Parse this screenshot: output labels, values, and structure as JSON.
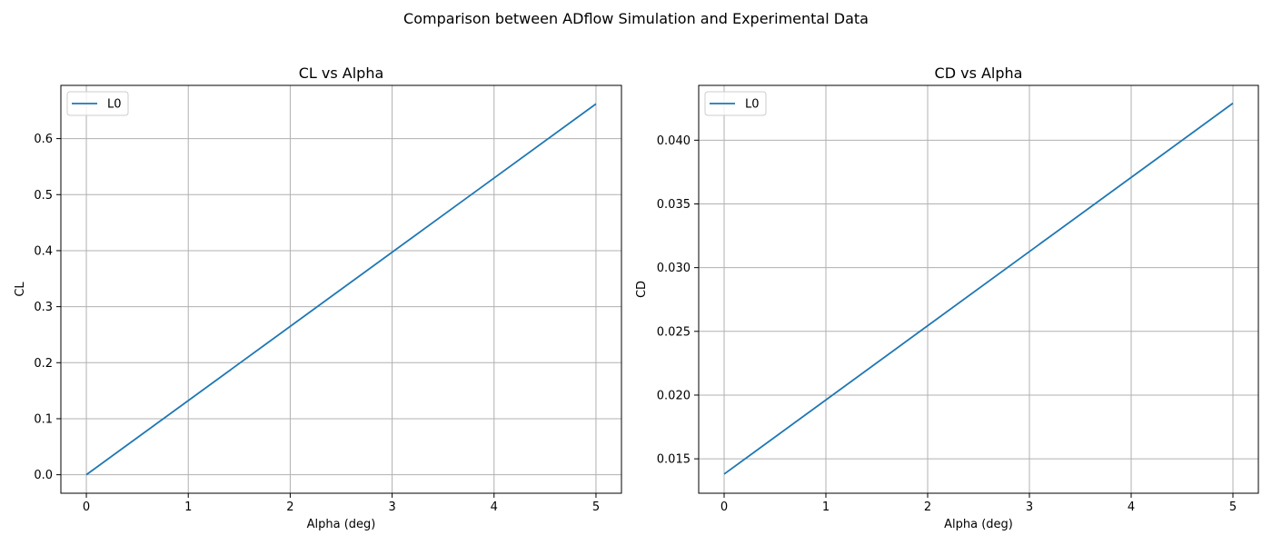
{
  "figure": {
    "suptitle": "Comparison between ADflow Simulation and Experimental Data"
  },
  "colors": {
    "series": "#1f77b4",
    "grid": "#b0b0b0",
    "spine": "#000000",
    "background": "#ffffff"
  },
  "chart_data": [
    {
      "type": "line",
      "title": "CL vs Alpha",
      "xlabel": "Alpha (deg)",
      "ylabel": "CL",
      "xlim": [
        -0.25,
        5.25
      ],
      "ylim": [
        -0.033,
        0.695
      ],
      "xticks": [
        0,
        1,
        2,
        3,
        4,
        5
      ],
      "xtick_labels": [
        "0",
        "1",
        "2",
        "3",
        "4",
        "5"
      ],
      "yticks": [
        0.0,
        0.1,
        0.2,
        0.3,
        0.4,
        0.5,
        0.6
      ],
      "ytick_labels": [
        "0.0",
        "0.1",
        "0.2",
        "0.3",
        "0.4",
        "0.5",
        "0.6"
      ],
      "grid": true,
      "legend_loc": "upper left",
      "series": [
        {
          "name": "L0",
          "x": [
            0,
            5
          ],
          "y": [
            0.0,
            0.662
          ]
        }
      ]
    },
    {
      "type": "line",
      "title": "CD vs Alpha",
      "xlabel": "Alpha (deg)",
      "ylabel": "CD",
      "xlim": [
        -0.25,
        5.25
      ],
      "ylim": [
        0.0123,
        0.0443
      ],
      "xticks": [
        0,
        1,
        2,
        3,
        4,
        5
      ],
      "xtick_labels": [
        "0",
        "1",
        "2",
        "3",
        "4",
        "5"
      ],
      "yticks": [
        0.015,
        0.02,
        0.025,
        0.03,
        0.035,
        0.04
      ],
      "ytick_labels": [
        "0.015",
        "0.020",
        "0.025",
        "0.030",
        "0.035",
        "0.040"
      ],
      "grid": true,
      "legend_loc": "upper left",
      "series": [
        {
          "name": "L0",
          "x": [
            0,
            5
          ],
          "y": [
            0.0138,
            0.0429
          ]
        }
      ]
    }
  ]
}
